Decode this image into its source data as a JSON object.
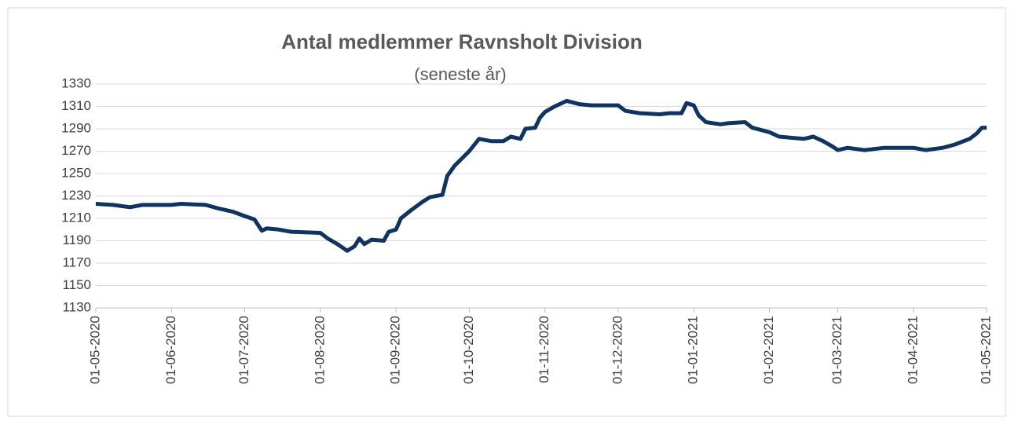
{
  "chart_data": {
    "type": "line",
    "title": "Antal medlemmer Ravnsholt Division",
    "subtitle": "(seneste år)",
    "x": [
      "01-05-2020",
      "08-05-2020",
      "15-05-2020",
      "20-05-2020",
      "01-06-2020",
      "05-06-2020",
      "15-06-2020",
      "20-06-2020",
      "26-06-2020",
      "01-07-2020",
      "05-07-2020",
      "08-07-2020",
      "10-07-2020",
      "15-07-2020",
      "20-07-2020",
      "01-08-2020",
      "04-08-2020",
      "08-08-2020",
      "12-08-2020",
      "15-08-2020",
      "17-08-2020",
      "19-08-2020",
      "22-08-2020",
      "27-08-2020",
      "29-08-2020",
      "01-09-2020",
      "03-09-2020",
      "07-09-2020",
      "12-09-2020",
      "15-09-2020",
      "20-09-2020",
      "22-09-2020",
      "25-09-2020",
      "01-10-2020",
      "05-10-2020",
      "10-10-2020",
      "15-10-2020",
      "18-10-2020",
      "22-10-2020",
      "24-10-2020",
      "28-10-2020",
      "30-10-2020",
      "01-11-2020",
      "05-11-2020",
      "10-11-2020",
      "15-11-2020",
      "20-11-2020",
      "01-12-2020",
      "04-12-2020",
      "10-12-2020",
      "18-12-2020",
      "22-12-2020",
      "27-12-2020",
      "29-12-2020",
      "01-01-2021",
      "03-01-2021",
      "06-01-2021",
      "12-01-2021",
      "15-01-2021",
      "22-01-2021",
      "25-01-2021",
      "01-02-2021",
      "05-02-2021",
      "15-02-2021",
      "19-02-2021",
      "23-02-2021",
      "27-02-2021",
      "01-03-2021",
      "05-03-2021",
      "12-03-2021",
      "20-03-2021",
      "01-04-2021",
      "06-04-2021",
      "13-04-2021",
      "18-04-2021",
      "24-04-2021",
      "27-04-2021",
      "29-04-2021",
      "01-05-2021"
    ],
    "series": [
      {
        "color": "#0f3461",
        "values": [
          1223,
          1222,
          1220,
          1222,
          1222,
          1223,
          1222,
          1219,
          1216,
          1212,
          1209,
          1199,
          1201,
          1200,
          1198,
          1197,
          1192,
          1187,
          1181,
          1185,
          1192,
          1187,
          1191,
          1190,
          1198,
          1200,
          1210,
          1217,
          1225,
          1229,
          1231,
          1248,
          1257,
          1270,
          1281,
          1279,
          1279,
          1283,
          1281,
          1290,
          1291,
          1300,
          1305,
          1310,
          1315,
          1312,
          1311,
          1311,
          1306,
          1304,
          1303,
          1304,
          1304,
          1313,
          1311,
          1302,
          1296,
          1294,
          1295,
          1296,
          1291,
          1287,
          1283,
          1281,
          1283,
          1279,
          1274,
          1271,
          1273,
          1271,
          1273,
          1273,
          1271,
          1273,
          1276,
          1281,
          1286,
          1291,
          1291
        ]
      }
    ],
    "xlim": [
      "01-05-2020",
      "01-05-2021"
    ],
    "xticks": [
      "01-05-2020",
      "01-06-2020",
      "01-07-2020",
      "01-08-2020",
      "01-09-2020",
      "01-10-2020",
      "01-11-2020",
      "01-12-2020",
      "01-01-2021",
      "01-02-2021",
      "01-03-2021",
      "01-04-2021",
      "01-05-2021"
    ],
    "ylim": [
      1130,
      1330
    ],
    "yticks": [
      1130,
      1150,
      1170,
      1190,
      1210,
      1230,
      1250,
      1270,
      1290,
      1310,
      1330
    ],
    "grid": true
  }
}
